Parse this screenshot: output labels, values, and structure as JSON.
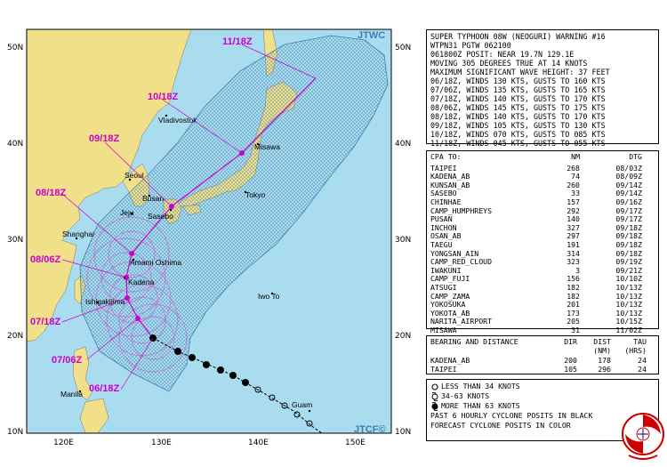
{
  "map": {
    "jtwc_label": "JTWC",
    "jtcf_label": "JTCF©",
    "lat_labels": [
      "50N",
      "40N",
      "30N",
      "20N",
      "10N"
    ],
    "lon_labels": [
      "120E",
      "130E",
      "140E",
      "150E"
    ],
    "cities": [
      "Vladivostok",
      "Misawa",
      "Seoul",
      "Busan",
      "Jeju",
      "Sasebo",
      "Tokyo",
      "Shanghai",
      "Amami Oshima",
      "Kadena",
      "Ishigakijima",
      "Iwo To",
      "Manila",
      "Guam"
    ],
    "time_labels": [
      "11/18Z",
      "10/18Z",
      "09/18Z",
      "08/18Z",
      "08/06Z",
      "07/18Z",
      "07/06Z",
      "06/18Z"
    ],
    "colors": {
      "ocean": "#a9dcef",
      "land": "#f1e08a",
      "forecast": "#cc00cc",
      "past": "#000000"
    }
  },
  "warning": {
    "lines": [
      "SUPER TYPHOON 08W (NEOGURI) WARNING #16",
      "WTPN31 PGTW 062100",
      "061800Z POSIT: NEAR 19.7N 129.1E",
      "MOVING 305 DEGREES TRUE AT 14 KNOTS",
      "MAXIMUM SIGNIFICANT WAVE HEIGHT: 37 FEET",
      "06/18Z, WINDS 130 KTS, GUSTS TO 160 KTS",
      "07/06Z, WINDS 135 KTS, GUSTS TO 165 KTS",
      "07/18Z, WINDS 140 KTS, GUSTS TO 170 KTS",
      "08/06Z, WINDS 145 KTS, GUSTS TO 175 KTS",
      "08/18Z, WINDS 140 KTS, GUSTS TO 170 KTS",
      "09/18Z, WINDS 105 KTS, GUSTS TO 130 KTS",
      "10/18Z, WINDS 070 KTS, GUSTS TO 085 KTS",
      "11/18Z, WINDS 045 KTS, GUSTS TO 055 KTS"
    ]
  },
  "cpa": {
    "header": {
      "name": "CPA TO:",
      "nm": "NM",
      "dtg": "DTG"
    },
    "rows": [
      {
        "name": "TAIPEI",
        "nm": "268",
        "dtg": "08/03Z"
      },
      {
        "name": "KADENA_AB",
        "nm": "74",
        "dtg": "08/09Z"
      },
      {
        "name": "KUNSAN_AB",
        "nm": "260",
        "dtg": "09/14Z"
      },
      {
        "name": "SASEBO",
        "nm": "33",
        "dtg": "09/14Z"
      },
      {
        "name": "CHINHAE",
        "nm": "157",
        "dtg": "09/16Z"
      },
      {
        "name": "CAMP_HUMPHREYS",
        "nm": "292",
        "dtg": "09/17Z"
      },
      {
        "name": "PUSAN",
        "nm": "140",
        "dtg": "09/17Z"
      },
      {
        "name": "INCHON",
        "nm": "327",
        "dtg": "09/18Z"
      },
      {
        "name": "OSAN_AB",
        "nm": "297",
        "dtg": "09/18Z"
      },
      {
        "name": "TAEGU",
        "nm": "191",
        "dtg": "09/18Z"
      },
      {
        "name": "YONGSAN_AIN",
        "nm": "314",
        "dtg": "09/18Z"
      },
      {
        "name": "CAMP_RED_CLOUD",
        "nm": "323",
        "dtg": "09/19Z"
      },
      {
        "name": "IWAKUNI",
        "nm": "3",
        "dtg": "09/21Z"
      },
      {
        "name": "CAMP_FUJI",
        "nm": "156",
        "dtg": "10/10Z"
      },
      {
        "name": "ATSUGI",
        "nm": "182",
        "dtg": "10/13Z"
      },
      {
        "name": "CAMP_ZAMA",
        "nm": "182",
        "dtg": "10/13Z"
      },
      {
        "name": "YOKOSUKA",
        "nm": "201",
        "dtg": "10/13Z"
      },
      {
        "name": "YOKOTA_AB",
        "nm": "173",
        "dtg": "10/13Z"
      },
      {
        "name": "NARITA_AIRPORT",
        "nm": "205",
        "dtg": "10/15Z"
      },
      {
        "name": "MISAWA",
        "nm": "31",
        "dtg": "11/02Z"
      }
    ]
  },
  "bearing": {
    "header": {
      "name": "BEARING AND DISTANCE",
      "dir": "DIR",
      "dist": "DIST",
      "tau": "TAU"
    },
    "subheader": {
      "dist": "(NM)",
      "tau": "(HRS)"
    },
    "rows": [
      {
        "name": "KADENA_AB",
        "dir": "200",
        "dist": "178",
        "tau": "24"
      },
      {
        "name": "TAIPEI",
        "dir": "105",
        "dist": "296",
        "tau": "24"
      }
    ]
  },
  "legend": {
    "items": [
      "LESS THAN 34 KNOTS",
      "34-63 KNOTS",
      "MORE THAN 63 KNOTS"
    ],
    "notes": [
      "PAST 6 HOURLY CYCLONE POSITS IN BLACK",
      "FORECAST CYCLONE POSITS IN COLOR"
    ]
  },
  "logo": {
    "text": "JOINT TYPHOON WARNING CENTER"
  }
}
